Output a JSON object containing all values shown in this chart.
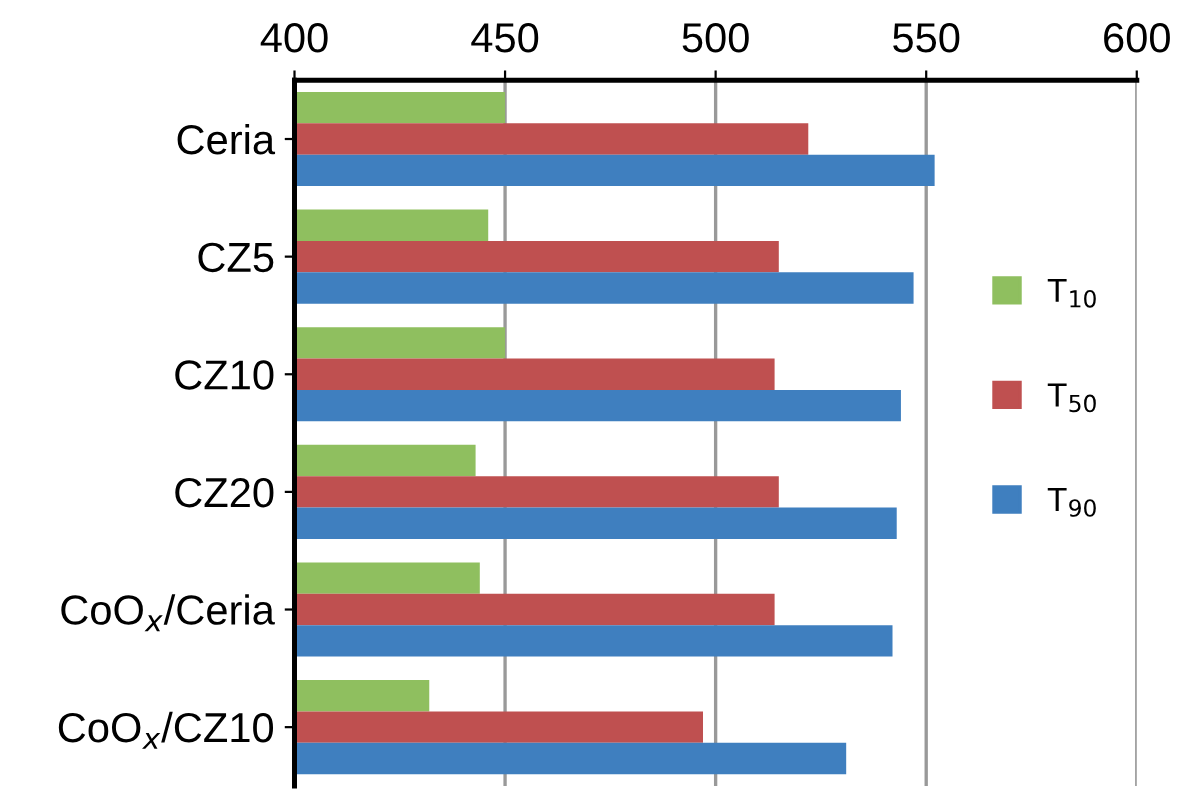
{
  "chart_data": {
    "type": "bar",
    "orientation": "horizontal",
    "categories": [
      "Ceria",
      "CZ5",
      "CZ10",
      "CZ20",
      "CoO$_{x}$/Ceria",
      "CoO$_{x}$/CZ10"
    ],
    "series": [
      {
        "name": "T$_{10}$",
        "color": "#8fbf5f",
        "values": [
          450,
          446,
          450,
          443,
          444,
          432
        ]
      },
      {
        "name": "T$_{50}$",
        "color": "#bf5050",
        "values": [
          522,
          515,
          514,
          515,
          514,
          497
        ]
      },
      {
        "name": "T$_{90}$",
        "color": "#3f7fbf",
        "values": [
          552,
          547,
          544,
          543,
          542,
          531
        ]
      }
    ],
    "xlim": [
      400,
      600
    ],
    "xticks": [
      400,
      450,
      500,
      550,
      600
    ],
    "grid": "x",
    "legend": "right"
  }
}
